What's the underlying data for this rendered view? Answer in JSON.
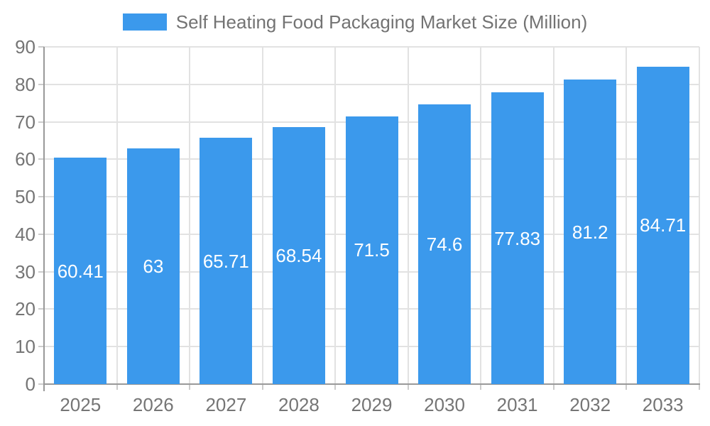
{
  "chart_data": {
    "type": "bar",
    "title": "Self Heating Food Packaging Market Size (Million)",
    "categories": [
      "2025",
      "2026",
      "2027",
      "2028",
      "2029",
      "2030",
      "2031",
      "2032",
      "2033"
    ],
    "values": [
      60.41,
      63,
      65.71,
      68.54,
      71.5,
      74.6,
      77.83,
      81.2,
      84.71
    ],
    "value_labels": [
      "60.41",
      "63",
      "65.71",
      "68.54",
      "71.5",
      "74.6",
      "77.83",
      "81.2",
      "84.71"
    ],
    "xlabel": "",
    "ylabel": "",
    "ylim": [
      0,
      90
    ],
    "ytick_step": 10,
    "grid": "on",
    "legend_position": "top",
    "legend_label": "Self Heating Food Packaging Market Size (Million)",
    "colors": {
      "bar": "#3B99EC",
      "bar_value_text": "#FFFFFF",
      "axis_label": "#757575",
      "legend_text": "#737373",
      "grid_line": "#E2E2E2",
      "axis_line": "#999999",
      "tick": "#CCCCCC",
      "background": "#FFFFFF"
    }
  }
}
